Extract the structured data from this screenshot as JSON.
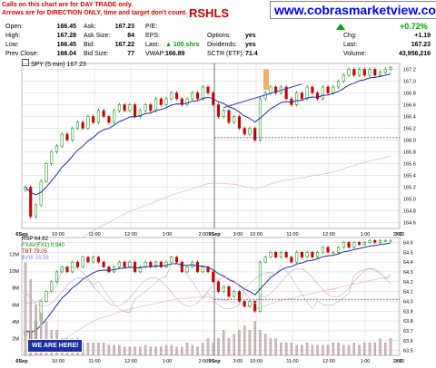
{
  "header": {
    "note_line1": "Calls on this chart are for DAY TRADE only.",
    "note_line2": "Arrows are for DIRECTION ONLY, time and target don't count.",
    "ticker_fragment": "RSHLS",
    "watermark_url": "www.cobrasmarketview.com",
    "pct_change": "+0.72%",
    "chg_label": "Chg:",
    "chg_value": "+1.19",
    "last_label": "Last:",
    "last_value": "167.23",
    "volume_label": "Volume:",
    "volume_value": "43,956,216"
  },
  "quote": {
    "open_label": "Open:",
    "open": "166.45",
    "high_label": "High:",
    "high": "167.28",
    "low_label": "Low:",
    "low": "166.45",
    "prev_label": "Prev Close:",
    "prev": "166.04",
    "ask_label": "Ask:",
    "ask": "167.23",
    "asksize_label": "Ask Size:",
    "asksize": "84",
    "bid_label": "Bid:",
    "bid": "167.22",
    "bidsize_label": "Bid Size:",
    "bidsize": "77",
    "pe_label": "P/E:",
    "eps_label": "EPS:",
    "last_label": "Last:",
    "last": "100 shrs",
    "vwap_label": "VWAP:",
    "vwap": "166.89",
    "options_label": "Options:",
    "options": "yes",
    "dividends_label": "Dividends:",
    "dividends": "yes",
    "sctr_label": "SCTR (ETF):",
    "sctr": "71.4"
  },
  "colors": {
    "up": "#008800",
    "down": "#cc0000",
    "ma": "#1a2fa0",
    "accent_line": "#3b3bd8",
    "vwap_line": "#f2b8c6",
    "orange_bar": "#f4a460",
    "grid": "#c8c8c8"
  },
  "chart_data": [
    {
      "type": "candlestick",
      "legend": "SPY (5 min) 167.23",
      "y_ticks": [
        "164.6",
        "164.8",
        "165.0",
        "165.2",
        "165.4",
        "165.6",
        "165.8",
        "166.0",
        "166.2",
        "166.4",
        "166.6",
        "166.8",
        "167.0",
        "167.2"
      ],
      "ylim": [
        164.5,
        167.3
      ],
      "x_ticks": [
        "6Sep",
        "10:00",
        "11:00",
        "12:00",
        "1:00",
        "2:00",
        "3:00",
        "9Sep",
        "10:00",
        "11:00",
        "12:00",
        "1:00",
        "2:00",
        "3:00"
      ],
      "reference_line": 166.04,
      "close": [
        165.2,
        164.7,
        164.9,
        165.3,
        165.6,
        165.8,
        165.9,
        166.1,
        166.0,
        166.2,
        166.3,
        166.2,
        166.4,
        166.3,
        166.5,
        166.4,
        166.3,
        166.5,
        166.6,
        166.5,
        166.6,
        166.4,
        166.5,
        166.6,
        166.5,
        166.7,
        166.6,
        166.7,
        166.8,
        166.7,
        166.6,
        166.7,
        166.8,
        166.7,
        166.9,
        166.8,
        166.6,
        166.4,
        166.5,
        166.3,
        166.4,
        166.2,
        166.1,
        166.2,
        166.0,
        166.7,
        166.8,
        166.9,
        166.8,
        166.9,
        166.7,
        166.6,
        166.8,
        166.7,
        166.9,
        166.8,
        166.7,
        166.9,
        166.8,
        166.9,
        167.0,
        167.1,
        167.2,
        167.1,
        167.2,
        167.1,
        167.2,
        167.1,
        167.15,
        167.2,
        167.23
      ]
    },
    {
      "type": "line",
      "legend_rsp": "RSP 64.62",
      "legend_fxav": "FXAV(FX1) 0.940",
      "legend_tbt": "TBT 79.05",
      "legend_vix": "$VIX 15.58",
      "y_ticks": [
        "63.5",
        "63.6",
        "63.7",
        "63.8",
        "63.9",
        "64.0",
        "64.1",
        "64.2",
        "64.3",
        "64.4",
        "64.5",
        "64.6"
      ],
      "ylim": [
        63.45,
        64.65
      ],
      "vol_ticks": [
        "2M",
        "4M",
        "6M",
        "8M",
        "10M",
        "12M"
      ],
      "reference_line": 64.02,
      "close": [
        63.7,
        63.6,
        63.8,
        64.0,
        64.1,
        64.2,
        64.3,
        64.35,
        64.3,
        64.4,
        64.35,
        64.45,
        64.4,
        64.45,
        64.4,
        64.35,
        64.3,
        64.35,
        64.4,
        64.35,
        64.4,
        64.3,
        64.35,
        64.4,
        64.35,
        64.4,
        64.35,
        64.4,
        64.45,
        64.4,
        64.3,
        64.35,
        64.4,
        64.3,
        64.35,
        64.3,
        64.2,
        64.1,
        64.15,
        64.05,
        64.1,
        64.0,
        63.95,
        64.0,
        63.9,
        64.4,
        64.45,
        64.5,
        64.45,
        64.5,
        64.45,
        64.4,
        64.5,
        64.45,
        64.5,
        64.45,
        64.5,
        64.55,
        64.5,
        64.5,
        64.55,
        64.6,
        64.55,
        64.6,
        64.58,
        64.6,
        64.62,
        64.6,
        64.62,
        64.62,
        64.62
      ],
      "volume": [
        11,
        9,
        6,
        5,
        4,
        3,
        3,
        2,
        2,
        2,
        2,
        1.5,
        1.5,
        1.5,
        1.5,
        1.5,
        1.2,
        1.2,
        1.2,
        1,
        1,
        1,
        1,
        1.2,
        1,
        1,
        1,
        1.2,
        1.2,
        1,
        1,
        1.5,
        1.2,
        1,
        1.5,
        2,
        1.5,
        2,
        3,
        2,
        2.5,
        3,
        3.5,
        3,
        4,
        3,
        2.5,
        2,
        2,
        1.5,
        1.5,
        1.5,
        1.2,
        1.2,
        1.5,
        1.2,
        1.2,
        1.2,
        1.2,
        1.5,
        1.5,
        1.2,
        1.2,
        1.5,
        1.2,
        1.5,
        1.5,
        1.5,
        2,
        1.5,
        2
      ]
    }
  ],
  "annotation": "WE ARE HERE!"
}
